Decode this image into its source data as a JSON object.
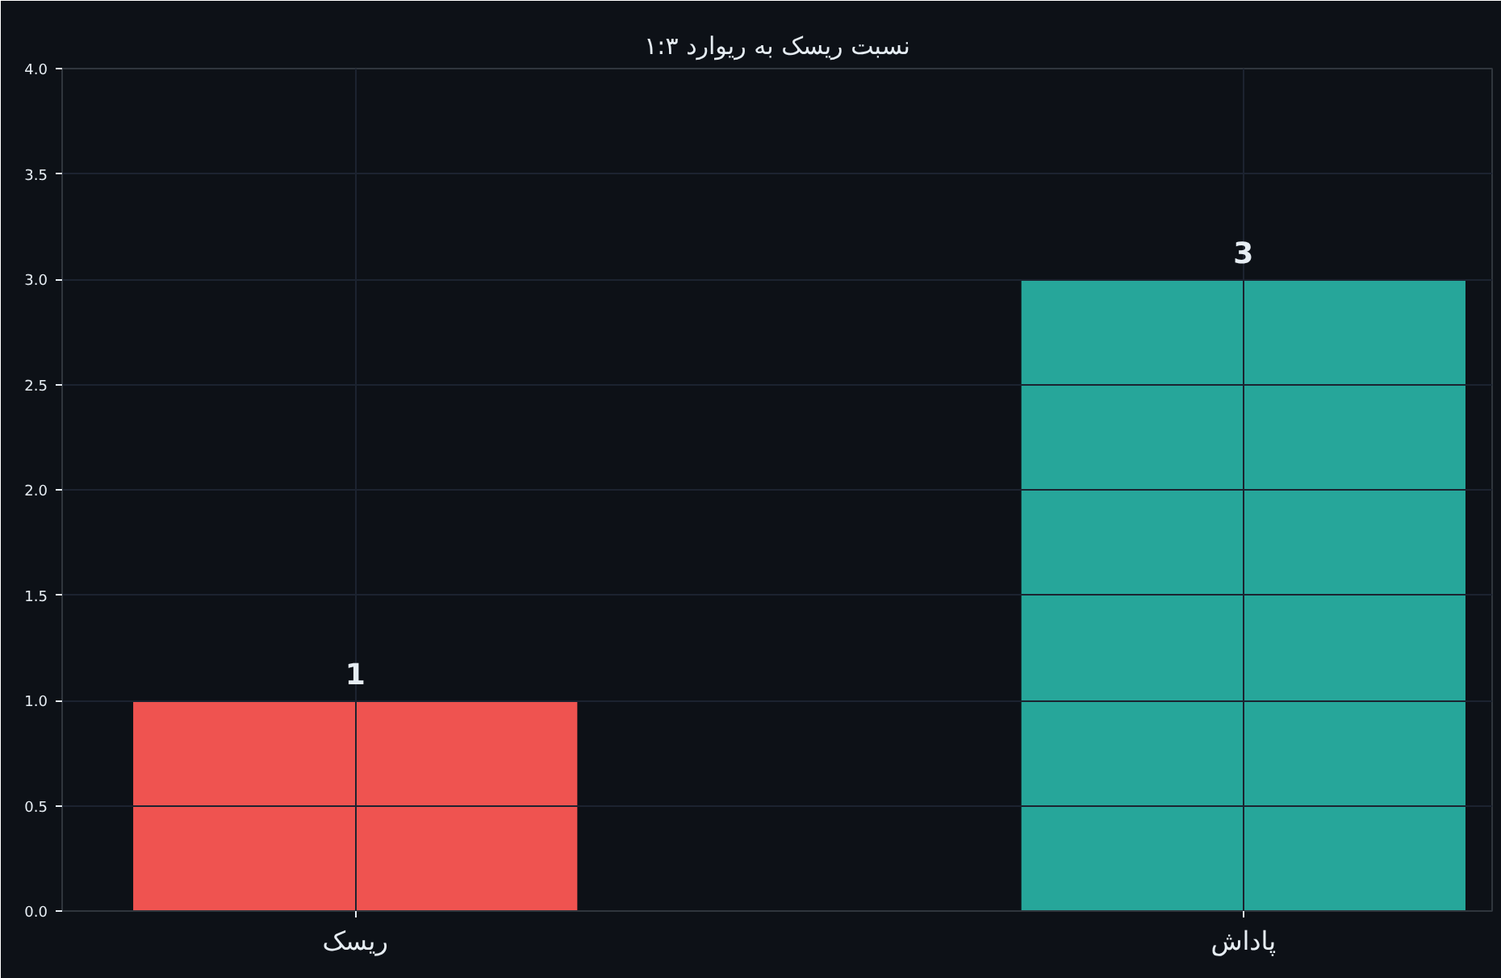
{
  "chart_data": {
    "type": "bar",
    "title": "نسبت ریسک به ریوارد ۱:۳",
    "categories": [
      "ریسک",
      "پاداش"
    ],
    "values": [
      1,
      3
    ],
    "colors": [
      "#ef5350",
      "#26a69a"
    ],
    "ylim": [
      0,
      4
    ],
    "yticks": [
      {
        "value": 0,
        "label": "0.0"
      },
      {
        "value": 0.5,
        "label": "0.5"
      },
      {
        "value": 1,
        "label": "1.0"
      },
      {
        "value": 1.5,
        "label": "1.5"
      },
      {
        "value": 2,
        "label": "2.0"
      },
      {
        "value": 2.5,
        "label": "2.5"
      },
      {
        "value": 3,
        "label": "3.0"
      },
      {
        "value": 3.5,
        "label": "3.5"
      },
      {
        "value": 4,
        "label": "4.0"
      }
    ],
    "grid": true,
    "data_labels": true
  }
}
